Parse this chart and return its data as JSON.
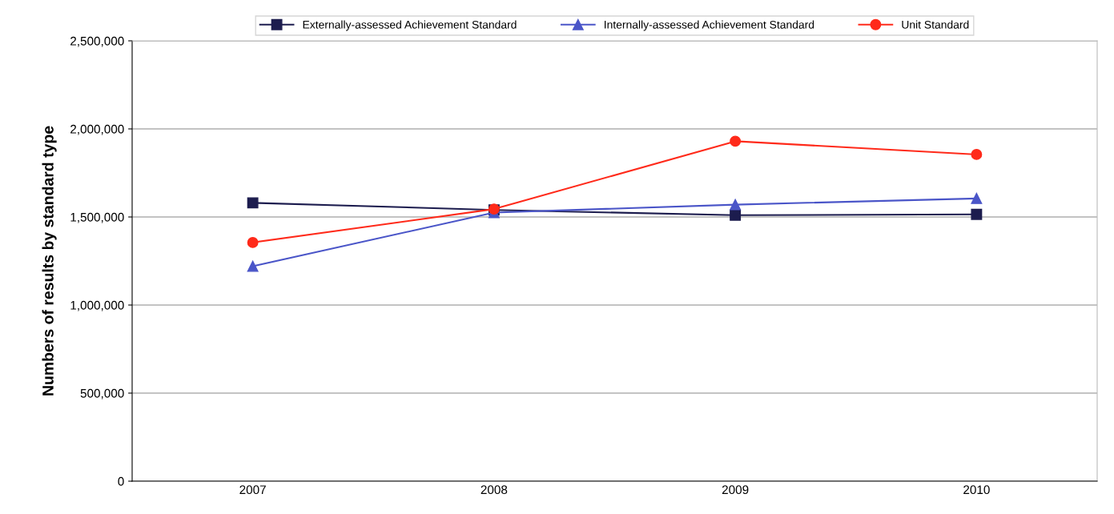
{
  "chart_data": {
    "type": "line",
    "ylabel": "Numbers of results by standard type",
    "categories": [
      "2007",
      "2008",
      "2009",
      "2010"
    ],
    "series": [
      {
        "name": "Externally-assessed Achievement Standard",
        "color": "#1c1c4e",
        "marker": "square",
        "values": [
          1580000,
          1540000,
          1510000,
          1515000
        ]
      },
      {
        "name": "Internally-assessed Achievement Standard",
        "color": "#4a55c8",
        "marker": "triangle",
        "values": [
          1220000,
          1525000,
          1570000,
          1605000
        ]
      },
      {
        "name": "Unit Standard",
        "color": "#ff2a1a",
        "marker": "circle",
        "values": [
          1355000,
          1545000,
          1930000,
          1855000
        ]
      }
    ],
    "ylim": [
      0,
      2500000
    ],
    "yticks": [
      {
        "value": 0,
        "label": "0"
      },
      {
        "value": 500000,
        "label": "500,000"
      },
      {
        "value": 1000000,
        "label": "1,000,000"
      },
      {
        "value": 1500000,
        "label": "1,500,000"
      },
      {
        "value": 2000000,
        "label": "2,000,000"
      },
      {
        "value": 2500000,
        "label": "2,500,000"
      }
    ],
    "grid": "y",
    "legend": "top"
  }
}
